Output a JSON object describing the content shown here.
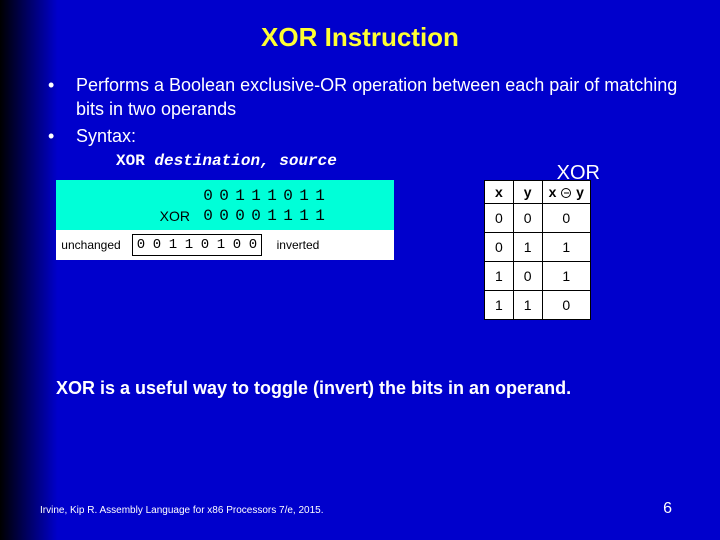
{
  "title": "XOR Instruction",
  "bullets": [
    "Performs a Boolean exclusive-OR operation between each pair of matching bits in two operands",
    "Syntax:"
  ],
  "syntax": {
    "op": "XOR",
    "dest": "destination, ",
    "src": "source"
  },
  "xor_side_label": "XOR",
  "diagram": {
    "row1_label": "",
    "row1_bits": [
      "0",
      "0",
      "1",
      "1",
      "1",
      "0",
      "1",
      "1"
    ],
    "row2_label": "XOR",
    "row2_bits": [
      "0",
      "0",
      "0",
      "0",
      "1",
      "1",
      "1",
      "1"
    ],
    "left_label": "unchanged",
    "result_bits": [
      "0",
      "0",
      "1",
      "1",
      "0",
      "1",
      "0",
      "0"
    ],
    "right_label": "inverted"
  },
  "truth": {
    "headers": {
      "x": "x",
      "y": "y",
      "op_left": "x",
      "op_right": "y"
    },
    "rows": [
      [
        "0",
        "0",
        "0"
      ],
      [
        "0",
        "1",
        "1"
      ],
      [
        "1",
        "0",
        "1"
      ],
      [
        "1",
        "1",
        "0"
      ]
    ]
  },
  "note": "XOR is a useful way to toggle (invert) the bits in an operand.",
  "footer": "Irvine, Kip R. Assembly Language for x86 Processors 7/e, 2015.",
  "page": "6"
}
